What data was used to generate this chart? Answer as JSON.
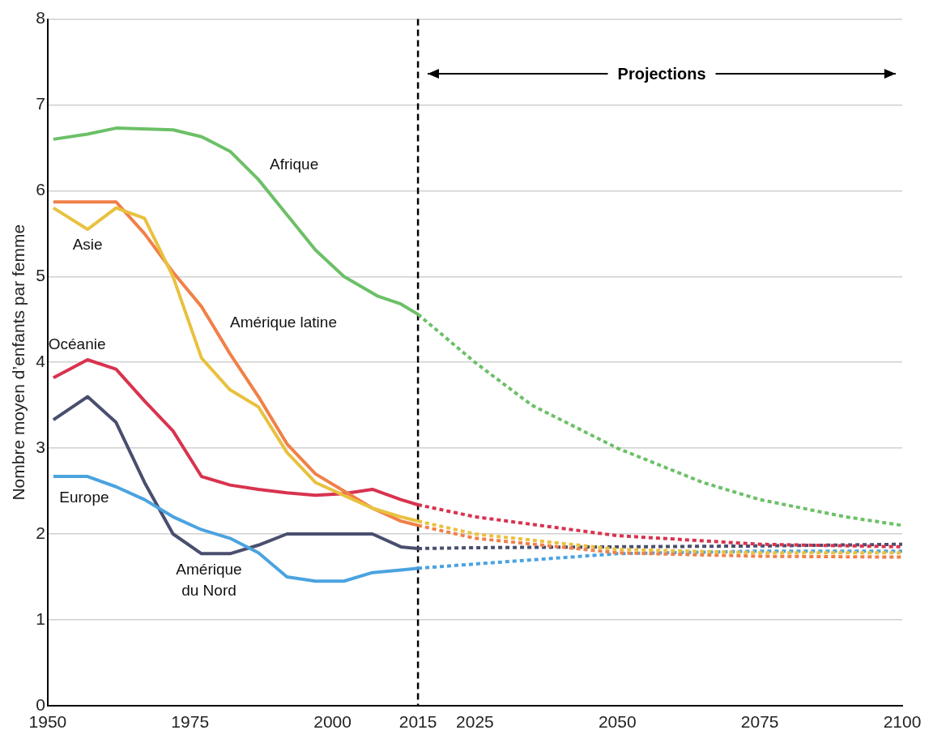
{
  "chart_data": {
    "type": "line",
    "ylabel": "Nombre moyen d’enfants par femme",
    "xlim": [
      1950,
      2100
    ],
    "xticks": [
      1950,
      1975,
      2000,
      2015,
      2025,
      2050,
      2075,
      2100
    ],
    "ylim": [
      0,
      8
    ],
    "yticks": [
      0,
      1,
      2,
      3,
      4,
      5,
      6,
      7,
      8
    ],
    "grid": "y",
    "legend": false,
    "marker": "none",
    "ref_lines": [
      {
        "axis": "x",
        "value": 2015,
        "color": "#000000",
        "line_style": "dashed"
      }
    ],
    "annotations": [
      "Projections"
    ],
    "series": [
      {
        "name": "Afrique",
        "color": "#6cc067",
        "line_style": "solid",
        "x": [
          1951,
          1957,
          1962,
          1972,
          1977,
          1982,
          1987,
          1992,
          1997,
          2002,
          2008,
          2012,
          2015
        ],
        "values": [
          6.6,
          6.66,
          6.73,
          6.71,
          6.63,
          6.46,
          6.13,
          5.72,
          5.31,
          5.0,
          4.77,
          4.68,
          4.56
        ]
      },
      {
        "name": "Asie",
        "color": "#e9c13f",
        "line_style": "solid",
        "x": [
          1951,
          1957,
          1962,
          1967,
          1972,
          1977,
          1982,
          1987,
          1992,
          1997,
          2002,
          2007,
          2012,
          2015
        ],
        "values": [
          5.8,
          5.55,
          5.8,
          5.68,
          5.0,
          4.05,
          3.68,
          3.48,
          2.95,
          2.6,
          2.45,
          2.3,
          2.2,
          2.15
        ]
      },
      {
        "name": "Amérique latine",
        "color": "#f08048",
        "line_style": "solid",
        "x": [
          1951,
          1962,
          1967,
          1972,
          1977,
          1982,
          1987,
          1992,
          1997,
          2002,
          2007,
          2012,
          2015
        ],
        "values": [
          5.87,
          5.87,
          5.5,
          5.05,
          4.65,
          4.1,
          3.6,
          3.05,
          2.7,
          2.5,
          2.3,
          2.15,
          2.1
        ]
      },
      {
        "name": "Océanie",
        "color": "#d8334f",
        "line_style": "solid",
        "x": [
          1951,
          1957,
          1962,
          1967,
          1972,
          1977,
          1982,
          1987,
          1992,
          1997,
          2002,
          2007,
          2012,
          2015
        ],
        "values": [
          3.82,
          4.03,
          3.92,
          3.55,
          3.2,
          2.67,
          2.57,
          2.52,
          2.48,
          2.45,
          2.47,
          2.52,
          2.4,
          2.34
        ]
      },
      {
        "name": "Europe",
        "color": "#4ba3e0",
        "line_style": "solid",
        "x": [
          1951,
          1957,
          1962,
          1967,
          1972,
          1977,
          1982,
          1987,
          1992,
          1997,
          2002,
          2007,
          2012,
          2015
        ],
        "values": [
          2.67,
          2.67,
          2.55,
          2.4,
          2.2,
          2.05,
          1.95,
          1.78,
          1.5,
          1.45,
          1.45,
          1.55,
          1.58,
          1.6
        ]
      },
      {
        "name": "Amérique du Nord",
        "color": "#4a4e6e",
        "line_style": "solid",
        "x": [
          1951,
          1957,
          1962,
          1967,
          1972,
          1977,
          1982,
          1987,
          1992,
          1997,
          2002,
          2007,
          2012,
          2015
        ],
        "values": [
          3.33,
          3.6,
          3.3,
          2.6,
          2.0,
          1.77,
          1.77,
          1.87,
          2.0,
          2.0,
          2.0,
          2.0,
          1.85,
          1.83
        ]
      },
      {
        "color": "#6cc067",
        "line_style": "dotted",
        "x": [
          2015,
          2025,
          2035,
          2050,
          2065,
          2075,
          2090,
          2100
        ],
        "values": [
          4.56,
          4.0,
          3.5,
          3.0,
          2.6,
          2.4,
          2.2,
          2.1
        ]
      },
      {
        "color": "#e9c13f",
        "line_style": "dotted",
        "x": [
          2015,
          2025,
          2050,
          2075,
          2100
        ],
        "values": [
          2.15,
          2.0,
          1.82,
          1.78,
          1.78
        ]
      },
      {
        "color": "#f08048",
        "line_style": "dotted",
        "x": [
          2015,
          2025,
          2050,
          2075,
          2100
        ],
        "values": [
          2.1,
          1.95,
          1.78,
          1.74,
          1.73
        ]
      },
      {
        "color": "#d8334f",
        "line_style": "dotted",
        "x": [
          2015,
          2025,
          2050,
          2075,
          2100
        ],
        "values": [
          2.34,
          2.2,
          1.98,
          1.88,
          1.85
        ]
      },
      {
        "color": "#4ba3e0",
        "line_style": "dotted",
        "x": [
          2015,
          2025,
          2050,
          2075,
          2100
        ],
        "values": [
          1.6,
          1.65,
          1.77,
          1.8,
          1.8
        ]
      },
      {
        "color": "#4a4e6e",
        "line_style": "dotted",
        "x": [
          2015,
          2025,
          2050,
          2075,
          2100
        ],
        "values": [
          1.83,
          1.84,
          1.85,
          1.86,
          1.88
        ]
      }
    ]
  }
}
